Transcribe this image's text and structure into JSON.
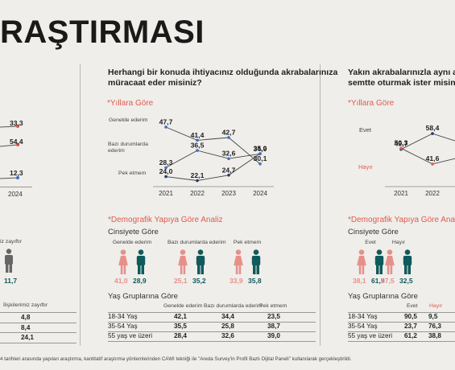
{
  "page_title": "RAŞTIRMASI",
  "left_partial": {
    "values": [
      "33,3",
      "54,4",
      "12,3"
    ],
    "year": "2024",
    "header_a": "iz zayıftır",
    "header_b": "İlişkilerimiz zayıftır",
    "single_value": "11,7",
    "table": [
      "4,8",
      "8,4",
      "24,1"
    ]
  },
  "center": {
    "question_line1": "Herhangi bir konuda ihtiyacınız olduğunda akrabalarınıza",
    "question_line2": "müracaat eder misiniz?",
    "years_label": "*Yıllara Göre",
    "demo_label": "*Demografik Yapıya Göre Analiz",
    "gender_label": "Cinsiyete Göre",
    "age_label": "Yaş Gruplarına Göre",
    "gender_groups": [
      {
        "name": "Genelde ederim",
        "female": "41,0",
        "male": "28,9"
      },
      {
        "name": "Bazı durumlarda ederim",
        "female": "25,1",
        "male": "35,2"
      },
      {
        "name": "Pek etmem",
        "female": "33,9",
        "male": "35,8"
      }
    ],
    "age_table": {
      "headers": [
        "Genelde ederim",
        "Bazı durumlarda ederim",
        "Pek etmem"
      ],
      "rows": [
        {
          "label": "18-34 Yaş",
          "values": [
            "42,1",
            "34,4",
            "23,5"
          ]
        },
        {
          "label": "35-54 Yaş",
          "values": [
            "35,5",
            "25,8",
            "38,7"
          ]
        },
        {
          "label": "55 yaş ve üzeri",
          "values": [
            "28,4",
            "32,6",
            "39,0"
          ]
        }
      ]
    }
  },
  "right": {
    "question_line1": "Yakın akrabalarınızla aynı apart",
    "question_line2": "semtte oturmak ister misiniz?",
    "years_label": "*Yıllara Göre",
    "demo_label": "*Demografik Yapıya Göre Analiz",
    "gender_label": "Cinsiyete Göre",
    "age_label": "Yaş Gruplarına Göre",
    "gender_groups": [
      {
        "name": "Evet",
        "female": "38,1",
        "male": "61,9"
      },
      {
        "name": "Hayır",
        "female": "67,5",
        "male": "32,5"
      }
    ],
    "age_table": {
      "headers": [
        "Evet",
        "Hayır"
      ],
      "rows": [
        {
          "label": "18-34 Yaş",
          "values": [
            "90,5",
            "9,5"
          ]
        },
        {
          "label": "35-54 Yaş",
          "values": [
            "23,7",
            "76,3"
          ]
        },
        {
          "label": "55 yaş ve üzeri",
          "values": [
            "61,2",
            "38,8"
          ]
        }
      ]
    }
  },
  "footnote": "4 tarihleri arasında yapılan araştırma, kantitatif araştırma yöntemlerinden CAWI tekniği ile \"Areda Survey'in Profil Bazlı Dijital Paneli\" kullanılarak gerçekleştirildi.",
  "colors": {
    "female": "#e7908a",
    "male": "#0f5a5c",
    "neutral": "#777777",
    "accent": "#e05a4e",
    "blue": "#3b6ec9"
  },
  "chart_data": [
    {
      "type": "line",
      "x": [
        "2021",
        "2022",
        "2023",
        "2024"
      ],
      "series": [
        {
          "name": "Genelde ederim",
          "values": [
            24.0,
            22.1,
            24.7,
            35.0
          ],
          "labels": [
            "24,0",
            "22,1",
            "24,7",
            "35,0"
          ]
        },
        {
          "name": "Bazı durumlarda ederim",
          "values": [
            47.7,
            41.4,
            42.7,
            30.1
          ],
          "labels": [
            "47,7",
            "41,4",
            "42,7",
            "30,1"
          ]
        },
        {
          "name": "Pek etmem",
          "values": [
            28.3,
            36.5,
            32.6,
            34.9
          ],
          "labels": [
            "28,3",
            "36,5",
            "32,6",
            "34,9"
          ]
        }
      ]
    },
    {
      "type": "line",
      "x": [
        "2021",
        "2022"
      ],
      "series": [
        {
          "name": "Evet",
          "values": [
            49.7,
            58.4
          ],
          "labels": [
            "49,7",
            "58,4"
          ]
        },
        {
          "name": "Hayır",
          "values": [
            50.3,
            41.6
          ],
          "labels": [
            "50,3",
            "41,6"
          ]
        }
      ]
    }
  ]
}
